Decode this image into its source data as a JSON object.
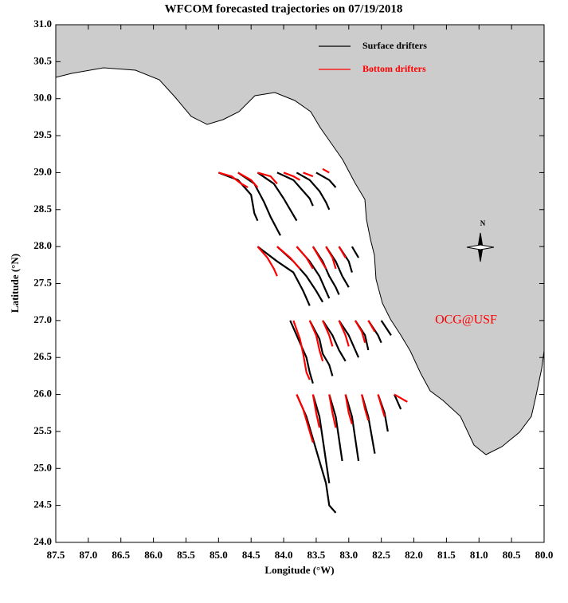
{
  "chart_data": {
    "type": "trajectory",
    "title": "WFCOM forecasted trajectories on 07/19/2018",
    "x_label": "Longitude (°W)",
    "y_label": "Latitude (°N)",
    "annotation": "OCG@USF",
    "compass_label": "N",
    "xlim": [
      87.5,
      80.0
    ],
    "ylim": [
      24.0,
      31.0
    ],
    "xticks": [
      87.5,
      {
        "value": 87,
        "label": "87.0"
      },
      86.5,
      {
        "value": 86,
        "label": "86.0"
      },
      85.5,
      {
        "value": 85,
        "label": "85.0"
      },
      84.5,
      {
        "value": 84,
        "label": "84.0"
      },
      83.5,
      {
        "value": 83,
        "label": "83.0"
      },
      82.5,
      {
        "value": 82,
        "label": "82.0"
      },
      81.5,
      {
        "value": 81,
        "label": "81.0"
      },
      80.5,
      {
        "value": 80,
        "label": "80.0"
      }
    ],
    "yticks": [
      {
        "value": 24,
        "label": "24.0"
      },
      24.5,
      {
        "value": 25,
        "label": "25.0"
      },
      25.5,
      {
        "value": 26,
        "label": "26.0"
      },
      26.5,
      {
        "value": 27,
        "label": "27.0"
      },
      27.5,
      {
        "value": 28,
        "label": "28.0"
      },
      28.5,
      {
        "value": 29,
        "label": "29.0"
      },
      29.5,
      {
        "value": 30,
        "label": "30.0"
      },
      30.5,
      {
        "value": 31,
        "label": "31.0"
      }
    ],
    "series": [
      {
        "name": "Surface drifters",
        "color": "#000000",
        "tracks": [
          {
            "lon": [
              85.0,
              84.7,
              84.5,
              84.45,
              84.4
            ],
            "lat": [
              29.0,
              28.9,
              28.7,
              28.45,
              28.35
            ]
          },
          {
            "lon": [
              84.7,
              84.45,
              84.3,
              84.2,
              84.05
            ],
            "lat": [
              29.0,
              28.85,
              28.6,
              28.4,
              28.15
            ]
          },
          {
            "lon": [
              84.4,
              84.15,
              84.0,
              83.9,
              83.8
            ],
            "lat": [
              29.0,
              28.85,
              28.65,
              28.5,
              28.35
            ]
          },
          {
            "lon": [
              84.1,
              83.85,
              83.7,
              83.6,
              83.55
            ],
            "lat": [
              29.0,
              28.9,
              28.75,
              28.65,
              28.55
            ]
          },
          {
            "lon": [
              83.8,
              83.6,
              83.45,
              83.35,
              83.3
            ],
            "lat": [
              29.0,
              28.9,
              28.75,
              28.6,
              28.5
            ]
          },
          {
            "lon": [
              83.5,
              83.3,
              83.2
            ],
            "lat": [
              29.0,
              28.9,
              28.8
            ]
          },
          {
            "lon": [
              84.4,
              84.1,
              83.85,
              83.7,
              83.6
            ],
            "lat": [
              28.0,
              27.8,
              27.65,
              27.4,
              27.2
            ]
          },
          {
            "lon": [
              84.1,
              83.85,
              83.65,
              83.5,
              83.4
            ],
            "lat": [
              28.0,
              27.8,
              27.6,
              27.4,
              27.25
            ]
          },
          {
            "lon": [
              83.8,
              83.6,
              83.45,
              83.35,
              83.3
            ],
            "lat": [
              28.0,
              27.8,
              27.6,
              27.4,
              27.3
            ]
          },
          {
            "lon": [
              83.55,
              83.4,
              83.3,
              83.2,
              83.15
            ],
            "lat": [
              28.0,
              27.8,
              27.6,
              27.45,
              27.35
            ]
          },
          {
            "lon": [
              83.35,
              83.2,
              83.1,
              83.0
            ],
            "lat": [
              28.0,
              27.8,
              27.6,
              27.45
            ]
          },
          {
            "lon": [
              83.15,
              83.0,
              82.95
            ],
            "lat": [
              28.0,
              27.8,
              27.65
            ]
          },
          {
            "lon": [
              82.95,
              82.85
            ],
            "lat": [
              28.0,
              27.85
            ]
          },
          {
            "lon": [
              83.9,
              83.75,
              83.65,
              83.6,
              83.55
            ],
            "lat": [
              27.0,
              26.7,
              26.5,
              26.3,
              26.15
            ]
          },
          {
            "lon": [
              83.6,
              83.45,
              83.4,
              83.3,
              83.25
            ],
            "lat": [
              27.0,
              26.75,
              26.55,
              26.4,
              26.25
            ]
          },
          {
            "lon": [
              83.4,
              83.25,
              83.15,
              83.05
            ],
            "lat": [
              27.0,
              26.8,
              26.6,
              26.45
            ]
          },
          {
            "lon": [
              83.15,
              83.0,
              82.9,
              82.85
            ],
            "lat": [
              27.0,
              26.8,
              26.6,
              26.5
            ]
          },
          {
            "lon": [
              82.9,
              82.75,
              82.7
            ],
            "lat": [
              27.0,
              26.8,
              26.6
            ]
          },
          {
            "lon": [
              82.7,
              82.55,
              82.5
            ],
            "lat": [
              27.0,
              26.8,
              26.7
            ]
          },
          {
            "lon": [
              82.5,
              82.35
            ],
            "lat": [
              27.0,
              26.8
            ]
          },
          {
            "lon": [
              83.8,
              83.65,
              83.55,
              83.45,
              83.35,
              83.3,
              83.2
            ],
            "lat": [
              26.0,
              25.7,
              25.4,
              25.1,
              24.8,
              24.5,
              24.4
            ]
          },
          {
            "lon": [
              83.55,
              83.45,
              83.4,
              83.35,
              83.3
            ],
            "lat": [
              26.0,
              25.7,
              25.4,
              25.1,
              24.8
            ]
          },
          {
            "lon": [
              83.3,
              83.2,
              83.15,
              83.1
            ],
            "lat": [
              26.0,
              25.7,
              25.4,
              25.1
            ]
          },
          {
            "lon": [
              83.05,
              82.95,
              82.9,
              82.85
            ],
            "lat": [
              26.0,
              25.7,
              25.4,
              25.1
            ]
          },
          {
            "lon": [
              82.8,
              82.7,
              82.65,
              82.6
            ],
            "lat": [
              26.0,
              25.7,
              25.45,
              25.2
            ]
          },
          {
            "lon": [
              82.55,
              82.45,
              82.4
            ],
            "lat": [
              26.0,
              25.75,
              25.5
            ]
          },
          {
            "lon": [
              82.3,
              82.2
            ],
            "lat": [
              26.0,
              25.8
            ]
          }
        ]
      },
      {
        "name": "Bottom drifters",
        "color": "#ff0000",
        "tracks": [
          {
            "lon": [
              85.0,
              84.8,
              84.65,
              84.55
            ],
            "lat": [
              29.0,
              28.95,
              28.85,
              28.8
            ]
          },
          {
            "lon": [
              84.7,
              84.5,
              84.4
            ],
            "lat": [
              29.0,
              28.9,
              28.8
            ]
          },
          {
            "lon": [
              84.4,
              84.2,
              84.1
            ],
            "lat": [
              29.0,
              28.95,
              28.85
            ]
          },
          {
            "lon": [
              84.0,
              83.85,
              83.75
            ],
            "lat": [
              29.0,
              28.95,
              28.9
            ]
          },
          {
            "lon": [
              83.7,
              83.55
            ],
            "lat": [
              29.0,
              28.95
            ]
          },
          {
            "lon": [
              83.4,
              83.3
            ],
            "lat": [
              29.05,
              29.0
            ]
          },
          {
            "lon": [
              84.4,
              84.25,
              84.15,
              84.1
            ],
            "lat": [
              28.0,
              27.85,
              27.7,
              27.6
            ]
          },
          {
            "lon": [
              84.1,
              83.9,
              83.75
            ],
            "lat": [
              28.0,
              27.85,
              27.7
            ]
          },
          {
            "lon": [
              83.8,
              83.65,
              83.55
            ],
            "lat": [
              28.0,
              27.85,
              27.7
            ]
          },
          {
            "lon": [
              83.55,
              83.45,
              83.35
            ],
            "lat": [
              28.0,
              27.85,
              27.7
            ]
          },
          {
            "lon": [
              83.35,
              83.25,
              83.2
            ],
            "lat": [
              28.0,
              27.85,
              27.7
            ]
          },
          {
            "lon": [
              83.15,
              83.05
            ],
            "lat": [
              28.0,
              27.85
            ]
          },
          {
            "lon": [
              83.85,
              83.75,
              83.7,
              83.65,
              83.6
            ],
            "lat": [
              27.0,
              26.75,
              26.55,
              26.3,
              26.2
            ]
          },
          {
            "lon": [
              83.6,
              83.5,
              83.45,
              83.4
            ],
            "lat": [
              27.0,
              26.8,
              26.6,
              26.45
            ]
          },
          {
            "lon": [
              83.4,
              83.3,
              83.25
            ],
            "lat": [
              27.0,
              26.8,
              26.65
            ]
          },
          {
            "lon": [
              83.15,
              83.05,
              83.0
            ],
            "lat": [
              27.0,
              26.8,
              26.65
            ]
          },
          {
            "lon": [
              82.9,
              82.8,
              82.75
            ],
            "lat": [
              27.0,
              26.85,
              26.7
            ]
          },
          {
            "lon": [
              82.7,
              82.6
            ],
            "lat": [
              27.0,
              26.85
            ]
          },
          {
            "lon": [
              83.8,
              83.7,
              83.6,
              83.55
            ],
            "lat": [
              26.0,
              25.8,
              25.5,
              25.35
            ]
          },
          {
            "lon": [
              83.55,
              83.5,
              83.45
            ],
            "lat": [
              26.0,
              25.75,
              25.55
            ]
          },
          {
            "lon": [
              83.3,
              83.25,
              83.2
            ],
            "lat": [
              26.0,
              25.75,
              25.55
            ]
          },
          {
            "lon": [
              83.05,
              83.0,
              82.95
            ],
            "lat": [
              26.0,
              25.75,
              25.6
            ]
          },
          {
            "lon": [
              82.8,
              82.75,
              82.7
            ],
            "lat": [
              26.0,
              25.8,
              25.65
            ]
          },
          {
            "lon": [
              82.55,
              82.5,
              82.45
            ],
            "lat": [
              26.0,
              25.85,
              25.7
            ]
          },
          {
            "lon": [
              82.3,
              82.2,
              82.1
            ],
            "lat": [
              26.0,
              25.95,
              25.9
            ]
          }
        ]
      }
    ]
  }
}
